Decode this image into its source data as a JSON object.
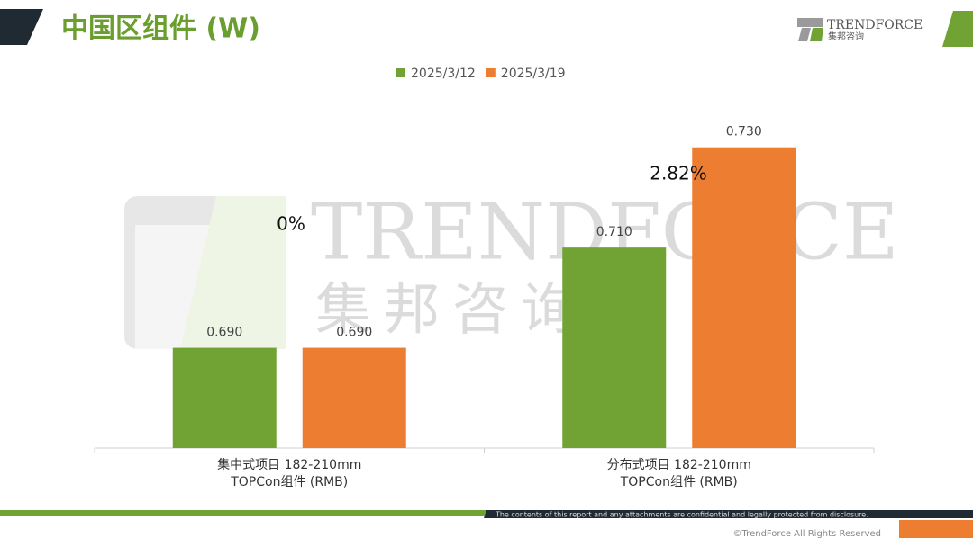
{
  "header": {
    "title": "中国区组件 (W)",
    "logo_name": "TRENDFORCE",
    "logo_sub": "集邦咨询"
  },
  "chart_data": {
    "type": "bar",
    "categories": [
      "集中式项目 182-210mm\nTOPCon组件 (RMB)",
      "分布式项目 182-210mm\nTOPCon组件 (RMB)"
    ],
    "series": [
      {
        "name": "2025/3/12",
        "color": "#71a334",
        "values": [
          0.69,
          0.71
        ],
        "value_labels": [
          "0.690",
          "0.710"
        ]
      },
      {
        "name": "2025/3/19",
        "color": "#ed7d31",
        "values": [
          0.69,
          0.73
        ],
        "value_labels": [
          "0.690",
          "0.730"
        ]
      }
    ],
    "ylim": [
      0.67,
      0.74
    ],
    "annotations": [
      "0%",
      "2.82%"
    ],
    "legend": "top"
  },
  "footer": {
    "notice": "The contents of this report and any attachments are confidential and legally protected from disclosure.",
    "copyright": "©TrendForce All Rights Reserved"
  }
}
